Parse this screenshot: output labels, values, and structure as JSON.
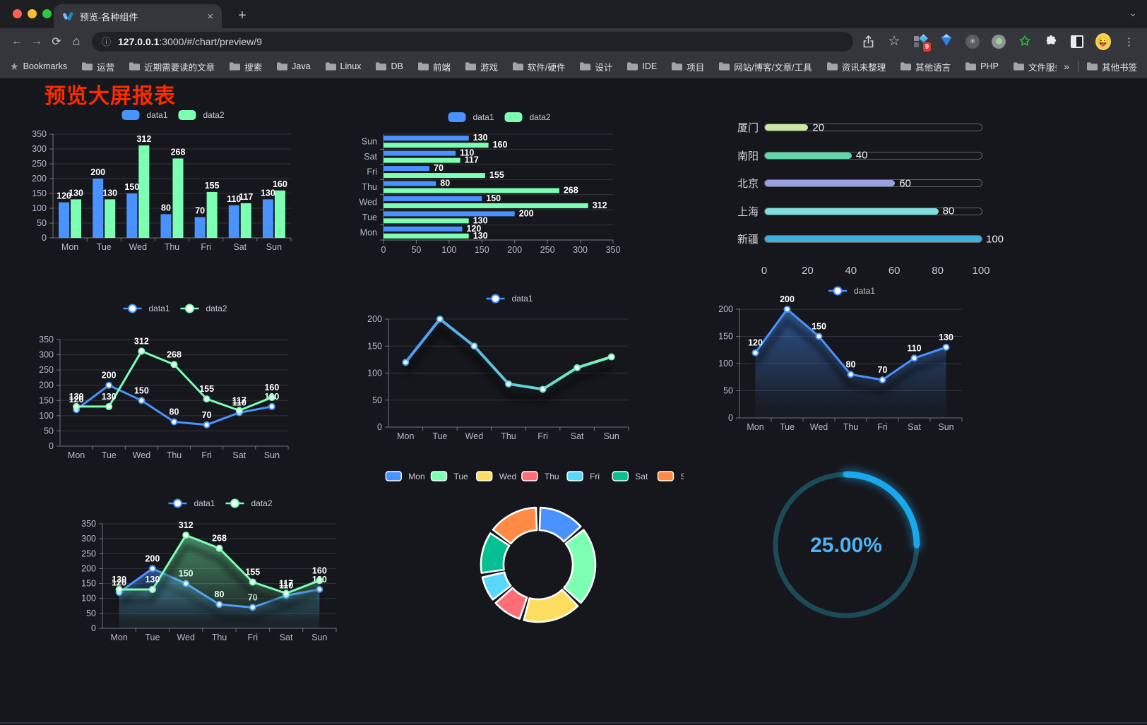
{
  "browser": {
    "tab_title": "预览-各种组件",
    "url_host": "127.0.0.1",
    "url_rest": ":3000/#/chart/preview/9",
    "extension_badge": "9",
    "icons": {
      "back": "←",
      "forward": "→",
      "reload": "⟳",
      "home": "⌂",
      "info": "ⓘ",
      "star": "☆",
      "menu": "⋮",
      "close": "×",
      "new_tab": "+",
      "tab_search": "⌄",
      "overflow": "»",
      "bookmarks_star": "★",
      "asterisk": "✳",
      "green_star": "✩",
      "avatar_emoji": "😜"
    },
    "bookmarks": [
      "Bookmarks",
      "运营",
      "近期需要读的文章",
      "搜索",
      "Java",
      "Linux",
      "DB",
      "前端",
      "游戏",
      "软件/硬件",
      "设计",
      "IDE",
      "项目",
      "网站/博客/文章/工具",
      "资讯未整理",
      "其他语言",
      "PHP",
      "文件服务器"
    ],
    "other_bookmarks": "其他书签"
  },
  "page": {
    "title": "预览大屏报表",
    "title_color": "#fb2b01",
    "background": "#16171c"
  },
  "chart_data": [
    {
      "id": "grouped-bar",
      "type": "bar",
      "categories": [
        "Mon",
        "Tue",
        "Wed",
        "Thu",
        "Fri",
        "Sat",
        "Sun"
      ],
      "series": [
        {
          "name": "data1",
          "color": "#4992ff",
          "values": [
            120,
            200,
            150,
            80,
            70,
            110,
            130
          ]
        },
        {
          "name": "data2",
          "color": "#7cffb2",
          "values": [
            130,
            130,
            312,
            268,
            155,
            117,
            160
          ]
        }
      ],
      "ylim": [
        0,
        350
      ],
      "ytick_step": 50,
      "value_labels": true,
      "legend_position": "top",
      "grid": true
    },
    {
      "id": "grouped-horizontal-bar",
      "type": "hbar",
      "categories": [
        "Mon",
        "Tue",
        "Wed",
        "Thu",
        "Fri",
        "Sat",
        "Sun"
      ],
      "series": [
        {
          "name": "data1",
          "color": "#4992ff",
          "values": [
            120,
            200,
            150,
            80,
            70,
            110,
            130
          ]
        },
        {
          "name": "data2",
          "color": "#7cffb2",
          "values": [
            130,
            130,
            312,
            268,
            155,
            117,
            160
          ]
        }
      ],
      "xlim": [
        0,
        350
      ],
      "xtick_step": 50,
      "value_labels": true,
      "legend_position": "top",
      "grid": true
    },
    {
      "id": "city-progress-bars",
      "type": "progress",
      "max": 100,
      "xticks": [
        0,
        20,
        40,
        60,
        80,
        100
      ],
      "rows": [
        {
          "label": "厦门",
          "value": 20,
          "color": "#c9e8a3"
        },
        {
          "label": "南阳",
          "value": 40,
          "color": "#5fd7a8"
        },
        {
          "label": "北京",
          "value": 60,
          "color": "#9aa0e3"
        },
        {
          "label": "上海",
          "value": 80,
          "color": "#7edee0"
        },
        {
          "label": "新疆",
          "value": 100,
          "color": "#41aede"
        }
      ]
    },
    {
      "id": "two-line",
      "type": "line",
      "categories": [
        "Mon",
        "Tue",
        "Wed",
        "Thu",
        "Fri",
        "Sat",
        "Sun"
      ],
      "series": [
        {
          "name": "data1",
          "color": "#4992ff",
          "values": [
            120,
            200,
            150,
            80,
            70,
            110,
            130
          ]
        },
        {
          "name": "data2",
          "color": "#7cffb2",
          "values": [
            130,
            130,
            312,
            268,
            155,
            117,
            160
          ]
        }
      ],
      "ylim": [
        0,
        350
      ],
      "ytick_step": 50,
      "value_labels": true,
      "legend_position": "top"
    },
    {
      "id": "gradient-line",
      "type": "line",
      "categories": [
        "Mon",
        "Tue",
        "Wed",
        "Thu",
        "Fri",
        "Sat",
        "Sun"
      ],
      "series": [
        {
          "name": "data1",
          "color": "#4992ff",
          "color2": "#7cffb2",
          "values": [
            120,
            200,
            150,
            80,
            70,
            110,
            130
          ]
        }
      ],
      "ylim": [
        0,
        200
      ],
      "ytick_step": 50,
      "value_labels": false,
      "shadow": true,
      "line_width": 4,
      "legend_position": "top"
    },
    {
      "id": "area-line",
      "type": "line",
      "categories": [
        "Mon",
        "Tue",
        "Wed",
        "Thu",
        "Fri",
        "Sat",
        "Sun"
      ],
      "series": [
        {
          "name": "data1",
          "color": "#4992ff",
          "area": true,
          "values": [
            120,
            200,
            150,
            80,
            70,
            110,
            130
          ]
        }
      ],
      "ylim": [
        0,
        200
      ],
      "ytick_step": 50,
      "value_labels": true,
      "shadow": true,
      "legend_position": "top"
    },
    {
      "id": "two-area-line",
      "type": "line",
      "categories": [
        "Mon",
        "Tue",
        "Wed",
        "Thu",
        "Fri",
        "Sat",
        "Sun"
      ],
      "series": [
        {
          "name": "data1",
          "color": "#4992ff",
          "area": true,
          "values": [
            120,
            200,
            150,
            80,
            70,
            110,
            130
          ]
        },
        {
          "name": "data2",
          "color": "#7cffb2",
          "area": true,
          "values": [
            130,
            130,
            312,
            268,
            155,
            117,
            160
          ]
        }
      ],
      "ylim": [
        0,
        350
      ],
      "ytick_step": 50,
      "value_labels": true,
      "shadow": true,
      "legend_position": "top"
    },
    {
      "id": "week-donut",
      "type": "donut",
      "categories": [
        "Mon",
        "Tue",
        "Wed",
        "Thu",
        "Fri",
        "Sat",
        "Sun"
      ],
      "values": [
        120,
        200,
        150,
        80,
        70,
        110,
        130
      ],
      "colors": [
        "#4992ff",
        "#7cffb2",
        "#fddd60",
        "#ff6e76",
        "#58d9f9",
        "#05c091",
        "#ff8a45"
      ],
      "legend_position": "top"
    },
    {
      "id": "percent-gauge",
      "type": "gauge",
      "percent": 25,
      "label": "25.00%",
      "color": "#1aa7ee",
      "track_color": "#1c4a57",
      "text_color": "#4fb3f3"
    }
  ]
}
